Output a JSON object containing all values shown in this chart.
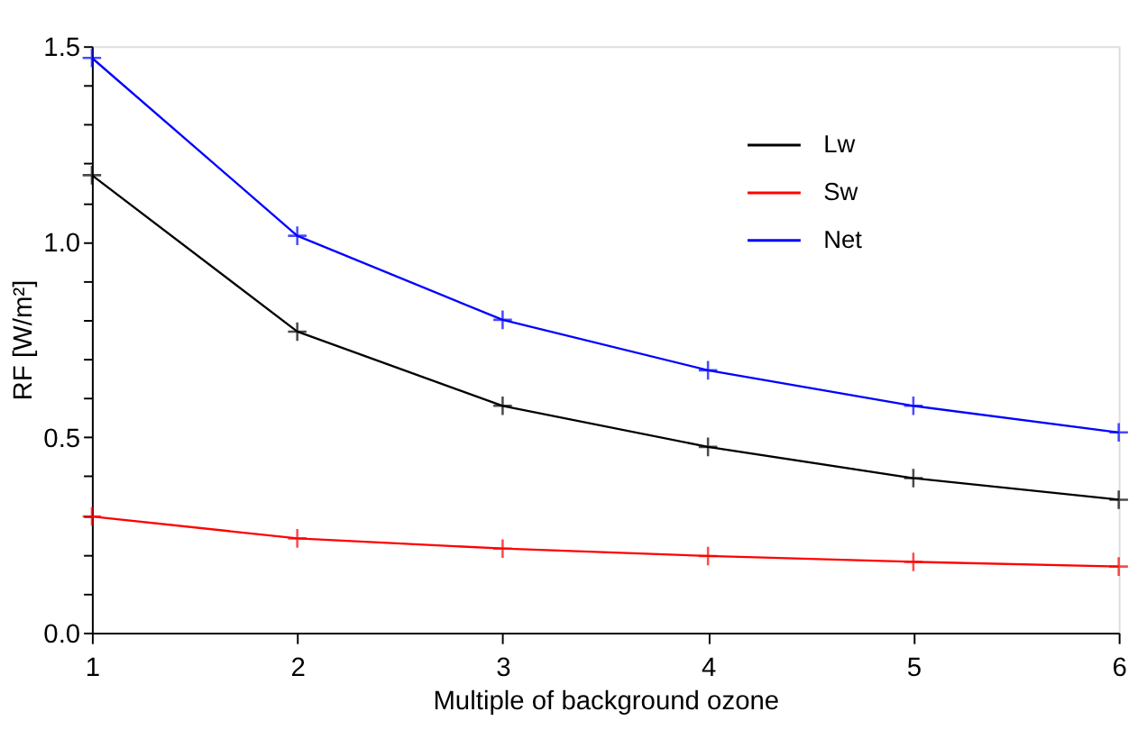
{
  "chart_data": {
    "type": "line",
    "xlabel": "Multiple of background ozone",
    "ylabel": "RF [W/m²]",
    "x": [
      1,
      2,
      3,
      4,
      5,
      6
    ],
    "xlim": [
      1,
      6
    ],
    "xticks": [
      1,
      2,
      3,
      4,
      5,
      6
    ],
    "ylim": [
      0,
      1.5
    ],
    "yticks": [
      "0.0",
      {
        "value": 0.1,
        "label": null
      },
      {
        "value": 0.2,
        "label": null
      },
      {
        "value": 0.3,
        "label": null
      },
      {
        "value": 0.4,
        "label": null
      },
      {
        "value": 0.5,
        "label": "0.5"
      },
      {
        "value": 0.6,
        "label": null
      },
      {
        "value": 0.7,
        "label": null
      },
      {
        "value": 0.8,
        "label": null
      },
      {
        "value": 0.9,
        "label": null
      },
      {
        "value": 1.0,
        "label": "1.0"
      },
      {
        "value": 1.1,
        "label": null
      },
      {
        "value": 1.2,
        "label": null
      },
      {
        "value": 1.3,
        "label": null
      },
      {
        "value": 1.4,
        "label": null
      },
      {
        "value": 1.5,
        "label": "1.5"
      }
    ],
    "series": [
      {
        "name": "Lw",
        "color": "#000000",
        "values": [
          1.17,
          0.77,
          0.58,
          0.475,
          0.395,
          0.34
        ]
      },
      {
        "name": "Sw",
        "color": "#ff0000",
        "values": [
          0.297,
          0.241,
          0.215,
          0.196,
          0.181,
          0.169
        ]
      },
      {
        "name": "Net",
        "color": "#0000ff",
        "values": [
          1.47,
          1.015,
          0.8,
          0.671,
          0.58,
          0.512
        ]
      }
    ],
    "marker": "cross",
    "line_style": "solid",
    "grid": false,
    "legend": "top right"
  }
}
